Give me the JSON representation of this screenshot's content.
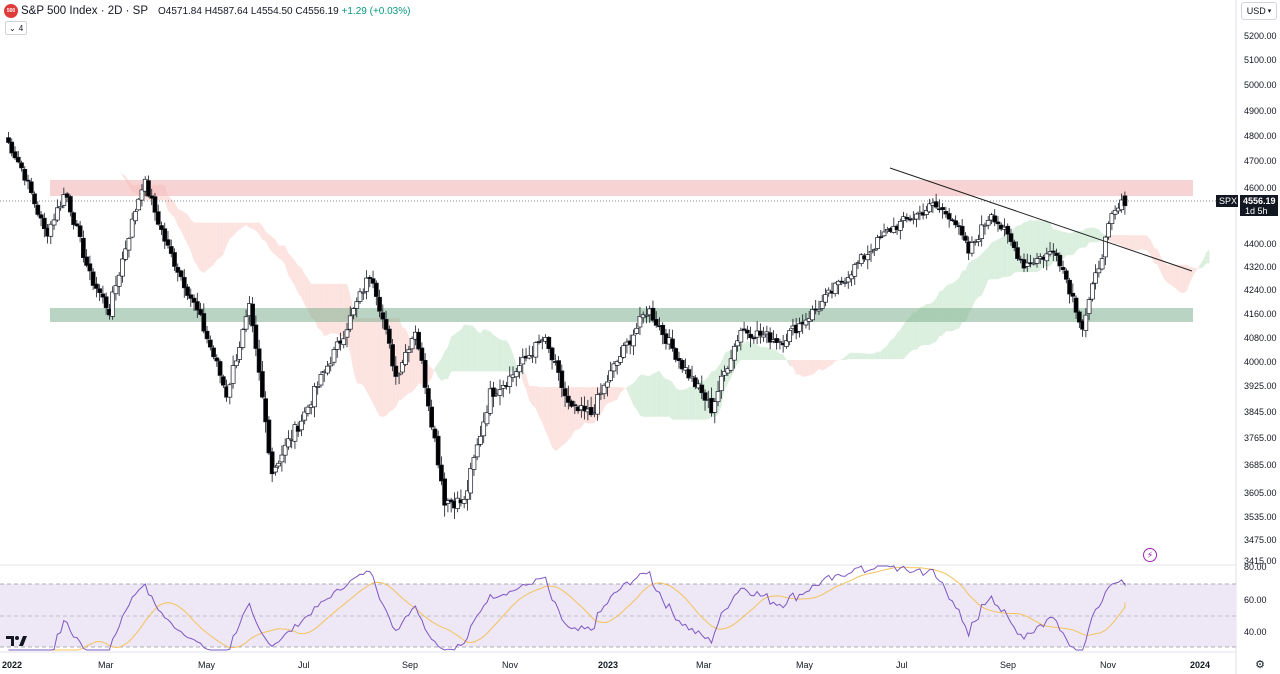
{
  "header": {
    "logo_text": "500",
    "title": "S&P 500 Index · 2D · SP",
    "open": "O4571.84",
    "high": "H4587.64",
    "low": "L4554.50",
    "close": "C4556.19",
    "change": "+1.29 (+0.03%)",
    "collapse_count": "4"
  },
  "toolbar": {
    "currency": "USD"
  },
  "price_axis": {
    "labels": [
      "5200.00",
      "5100.00",
      "5000.00",
      "4900.00",
      "4800.00",
      "4700.00",
      "4600.00",
      "4400.00",
      "4320.00",
      "4240.00",
      "4160.00",
      "4080.00",
      "4000.00",
      "3925.00",
      "3845.00",
      "3765.00",
      "3685.00",
      "3605.00",
      "3535.00",
      "3475.00",
      "3415.00"
    ]
  },
  "price_tag": {
    "symbol": "SPX",
    "price": "4556.19",
    "countdown": "1d 5h"
  },
  "rsi_axis": {
    "labels": [
      "80.00",
      "60.00",
      "40.00"
    ]
  },
  "time_axis": {
    "labels": [
      "2022",
      "Mar",
      "May",
      "Jul",
      "Sep",
      "Nov",
      "2023",
      "Mar",
      "May",
      "Jul",
      "Sep",
      "Nov",
      "2024"
    ]
  },
  "colors": {
    "bull": "#ffffff",
    "bear": "#000000",
    "resistance_zone": "#f2b6b6",
    "support_zone": "#7fb08f",
    "cloud_bull": "#cfe9d3",
    "cloud_bear": "#fbd9d6",
    "rsi": "#7e57c2",
    "rsi_ma": "#f5c25b",
    "rsi_band": "#ede7f6"
  },
  "chart_data": {
    "type": "candlestick",
    "symbol": "S&P 500 Index",
    "interval": "2D",
    "exchange": "SP",
    "x_range": [
      "2022-01-01",
      "2024-01-15"
    ],
    "y_range": [
      3415,
      5200
    ],
    "last": {
      "open": 4571.84,
      "high": 4587.64,
      "low": 4554.5,
      "close": 4556.19,
      "change": 1.29,
      "change_pct": 0.03
    },
    "close_path": [
      [
        "2022-01-03",
        4796
      ],
      [
        "2022-01-14",
        4662
      ],
      [
        "2022-01-28",
        4432
      ],
      [
        "2022-02-09",
        4587
      ],
      [
        "2022-02-24",
        4288
      ],
      [
        "2022-03-08",
        4170
      ],
      [
        "2022-03-29",
        4632
      ],
      [
        "2022-04-12",
        4397
      ],
      [
        "2022-05-02",
        4155
      ],
      [
        "2022-05-19",
        3900
      ],
      [
        "2022-06-02",
        4176
      ],
      [
        "2022-06-16",
        3667
      ],
      [
        "2022-07-05",
        3831
      ],
      [
        "2022-07-28",
        4072
      ],
      [
        "2022-08-16",
        4305
      ],
      [
        "2022-08-31",
        3955
      ],
      [
        "2022-09-12",
        4110
      ],
      [
        "2022-09-30",
        3585
      ],
      [
        "2022-10-12",
        3577
      ],
      [
        "2022-10-28",
        3901
      ],
      [
        "2022-11-10",
        3956
      ],
      [
        "2022-11-30",
        4080
      ],
      [
        "2022-12-16",
        3852
      ],
      [
        "2022-12-29",
        3839
      ],
      [
        "2023-01-12",
        3983
      ],
      [
        "2023-02-02",
        4179
      ],
      [
        "2023-02-23",
        3991
      ],
      [
        "2023-03-13",
        3855
      ],
      [
        "2023-03-31",
        4109
      ],
      [
        "2023-04-25",
        4071
      ],
      [
        "2023-05-19",
        4191
      ],
      [
        "2023-06-12",
        4338
      ],
      [
        "2023-06-30",
        4450
      ],
      [
        "2023-07-27",
        4537
      ],
      [
        "2023-08-08",
        4499
      ],
      [
        "2023-08-18",
        4370
      ],
      [
        "2023-09-01",
        4515
      ],
      [
        "2023-09-21",
        4330
      ],
      [
        "2023-10-11",
        4376
      ],
      [
        "2023-10-27",
        4117
      ],
      [
        "2023-11-14",
        4495
      ],
      [
        "2023-11-22",
        4556
      ]
    ],
    "zones": [
      {
        "name": "resistance",
        "from": 4560,
        "to": 4620
      },
      {
        "name": "support",
        "from": 4135,
        "to": 4185
      }
    ],
    "trendline": {
      "from": [
        "2023-06-14",
        4705
      ],
      "to": [
        "2023-12-31",
        4300
      ]
    },
    "ichimoku_cloud": true,
    "rsi": {
      "range": [
        20,
        85
      ],
      "upper_band": 70,
      "mid_line": 50,
      "lower_band": 30,
      "levels_labeled": [
        80,
        60,
        40
      ]
    }
  }
}
